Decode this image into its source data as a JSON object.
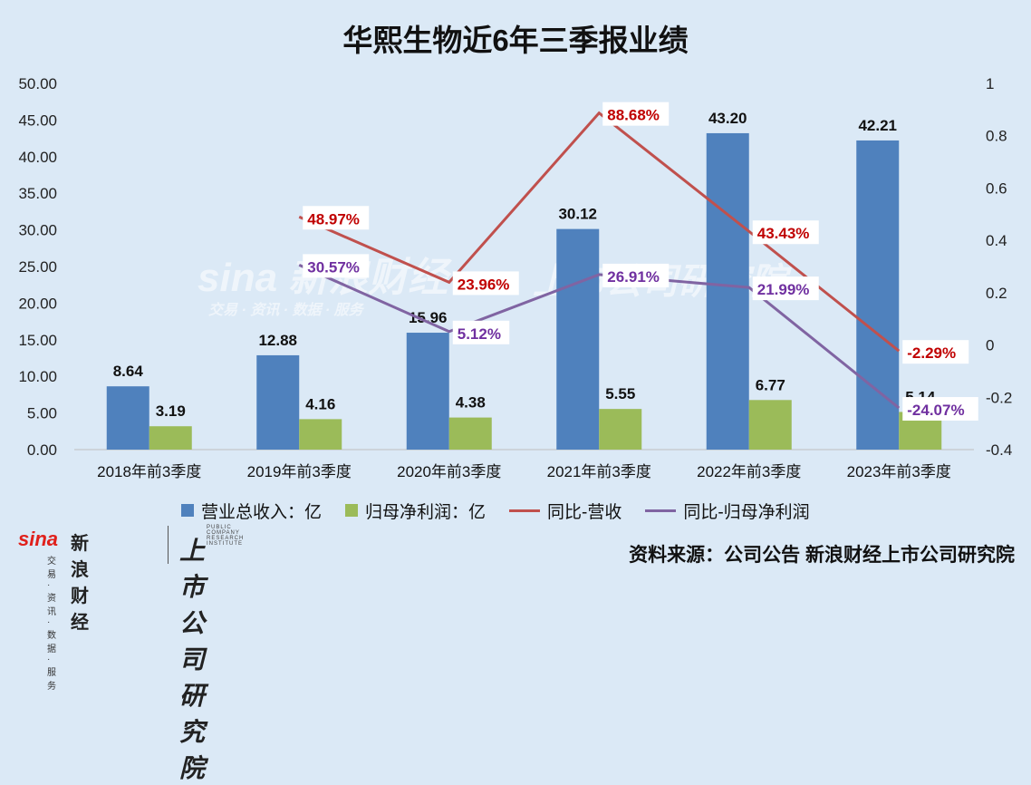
{
  "title": "华熙生物近6年三季报业绩",
  "source": "资料来源：公司公告 新浪财经上市公司研究院",
  "brand": {
    "sina": "sina",
    "cn": "新浪财经",
    "sub": "交易 · 资讯 · 数据 · 服务",
    "institute": "上市公司研究院",
    "institute_en": "PUBLIC COMPANY RESEARCH INSTITUTE"
  },
  "watermark": {
    "sina": "sina 新浪财经",
    "sub": "交易 · 资讯 · 数据 · 服务",
    "institute": "上市公司研究院"
  },
  "colors": {
    "revenue": "#4f81bd",
    "profit": "#9bbb59",
    "yoy_revenue": "#c0504d",
    "yoy_profit": "#8064a2",
    "yoy_revenue_label": "#c00000",
    "yoy_profit_label": "#7030a0"
  },
  "chart_data": {
    "type": "bar",
    "categories": [
      "2018年前3季度",
      "2019年前3季度",
      "2020年前3季度",
      "2021年前3季度",
      "2022年前3季度",
      "2023年前3季度"
    ],
    "y_left": {
      "min": 0,
      "max": 50,
      "ticks": [
        "0.00",
        "5.00",
        "10.00",
        "15.00",
        "20.00",
        "25.00",
        "30.00",
        "35.00",
        "40.00",
        "45.00",
        "50.00"
      ]
    },
    "y_right": {
      "min": -0.4,
      "max": 1,
      "ticks": [
        "-0.4",
        "-0.2",
        "0",
        "0.2",
        "0.4",
        "0.6",
        "0.8",
        "1"
      ]
    },
    "series": [
      {
        "name": "营业总收入：亿",
        "kind": "bar",
        "axis": "left",
        "values": [
          8.64,
          12.88,
          15.96,
          30.12,
          43.2,
          42.21
        ],
        "labels": [
          "8.64",
          "12.88",
          "15.96",
          "30.12",
          "43.20",
          "42.21"
        ]
      },
      {
        "name": "归母净利润：亿",
        "kind": "bar",
        "axis": "left",
        "values": [
          3.19,
          4.16,
          4.38,
          5.55,
          6.77,
          5.14
        ],
        "labels": [
          "3.19",
          "4.16",
          "4.38",
          "5.55",
          "6.77",
          "5.14"
        ]
      },
      {
        "name": "同比-营收",
        "kind": "line",
        "axis": "right",
        "values": [
          null,
          0.4897,
          0.2396,
          0.8868,
          0.4343,
          -0.0229
        ],
        "labels": [
          null,
          "48.97%",
          "23.96%",
          "88.68%",
          "43.43%",
          "-2.29%"
        ]
      },
      {
        "name": "同比-归母净利润",
        "kind": "line",
        "axis": "right",
        "values": [
          null,
          0.3057,
          0.0512,
          0.2691,
          0.2199,
          -0.2407
        ],
        "labels": [
          null,
          "30.57%",
          "5.12%",
          "26.91%",
          "21.99%",
          "-24.07%"
        ]
      }
    ],
    "legend_position": "bottom",
    "grid": false
  }
}
